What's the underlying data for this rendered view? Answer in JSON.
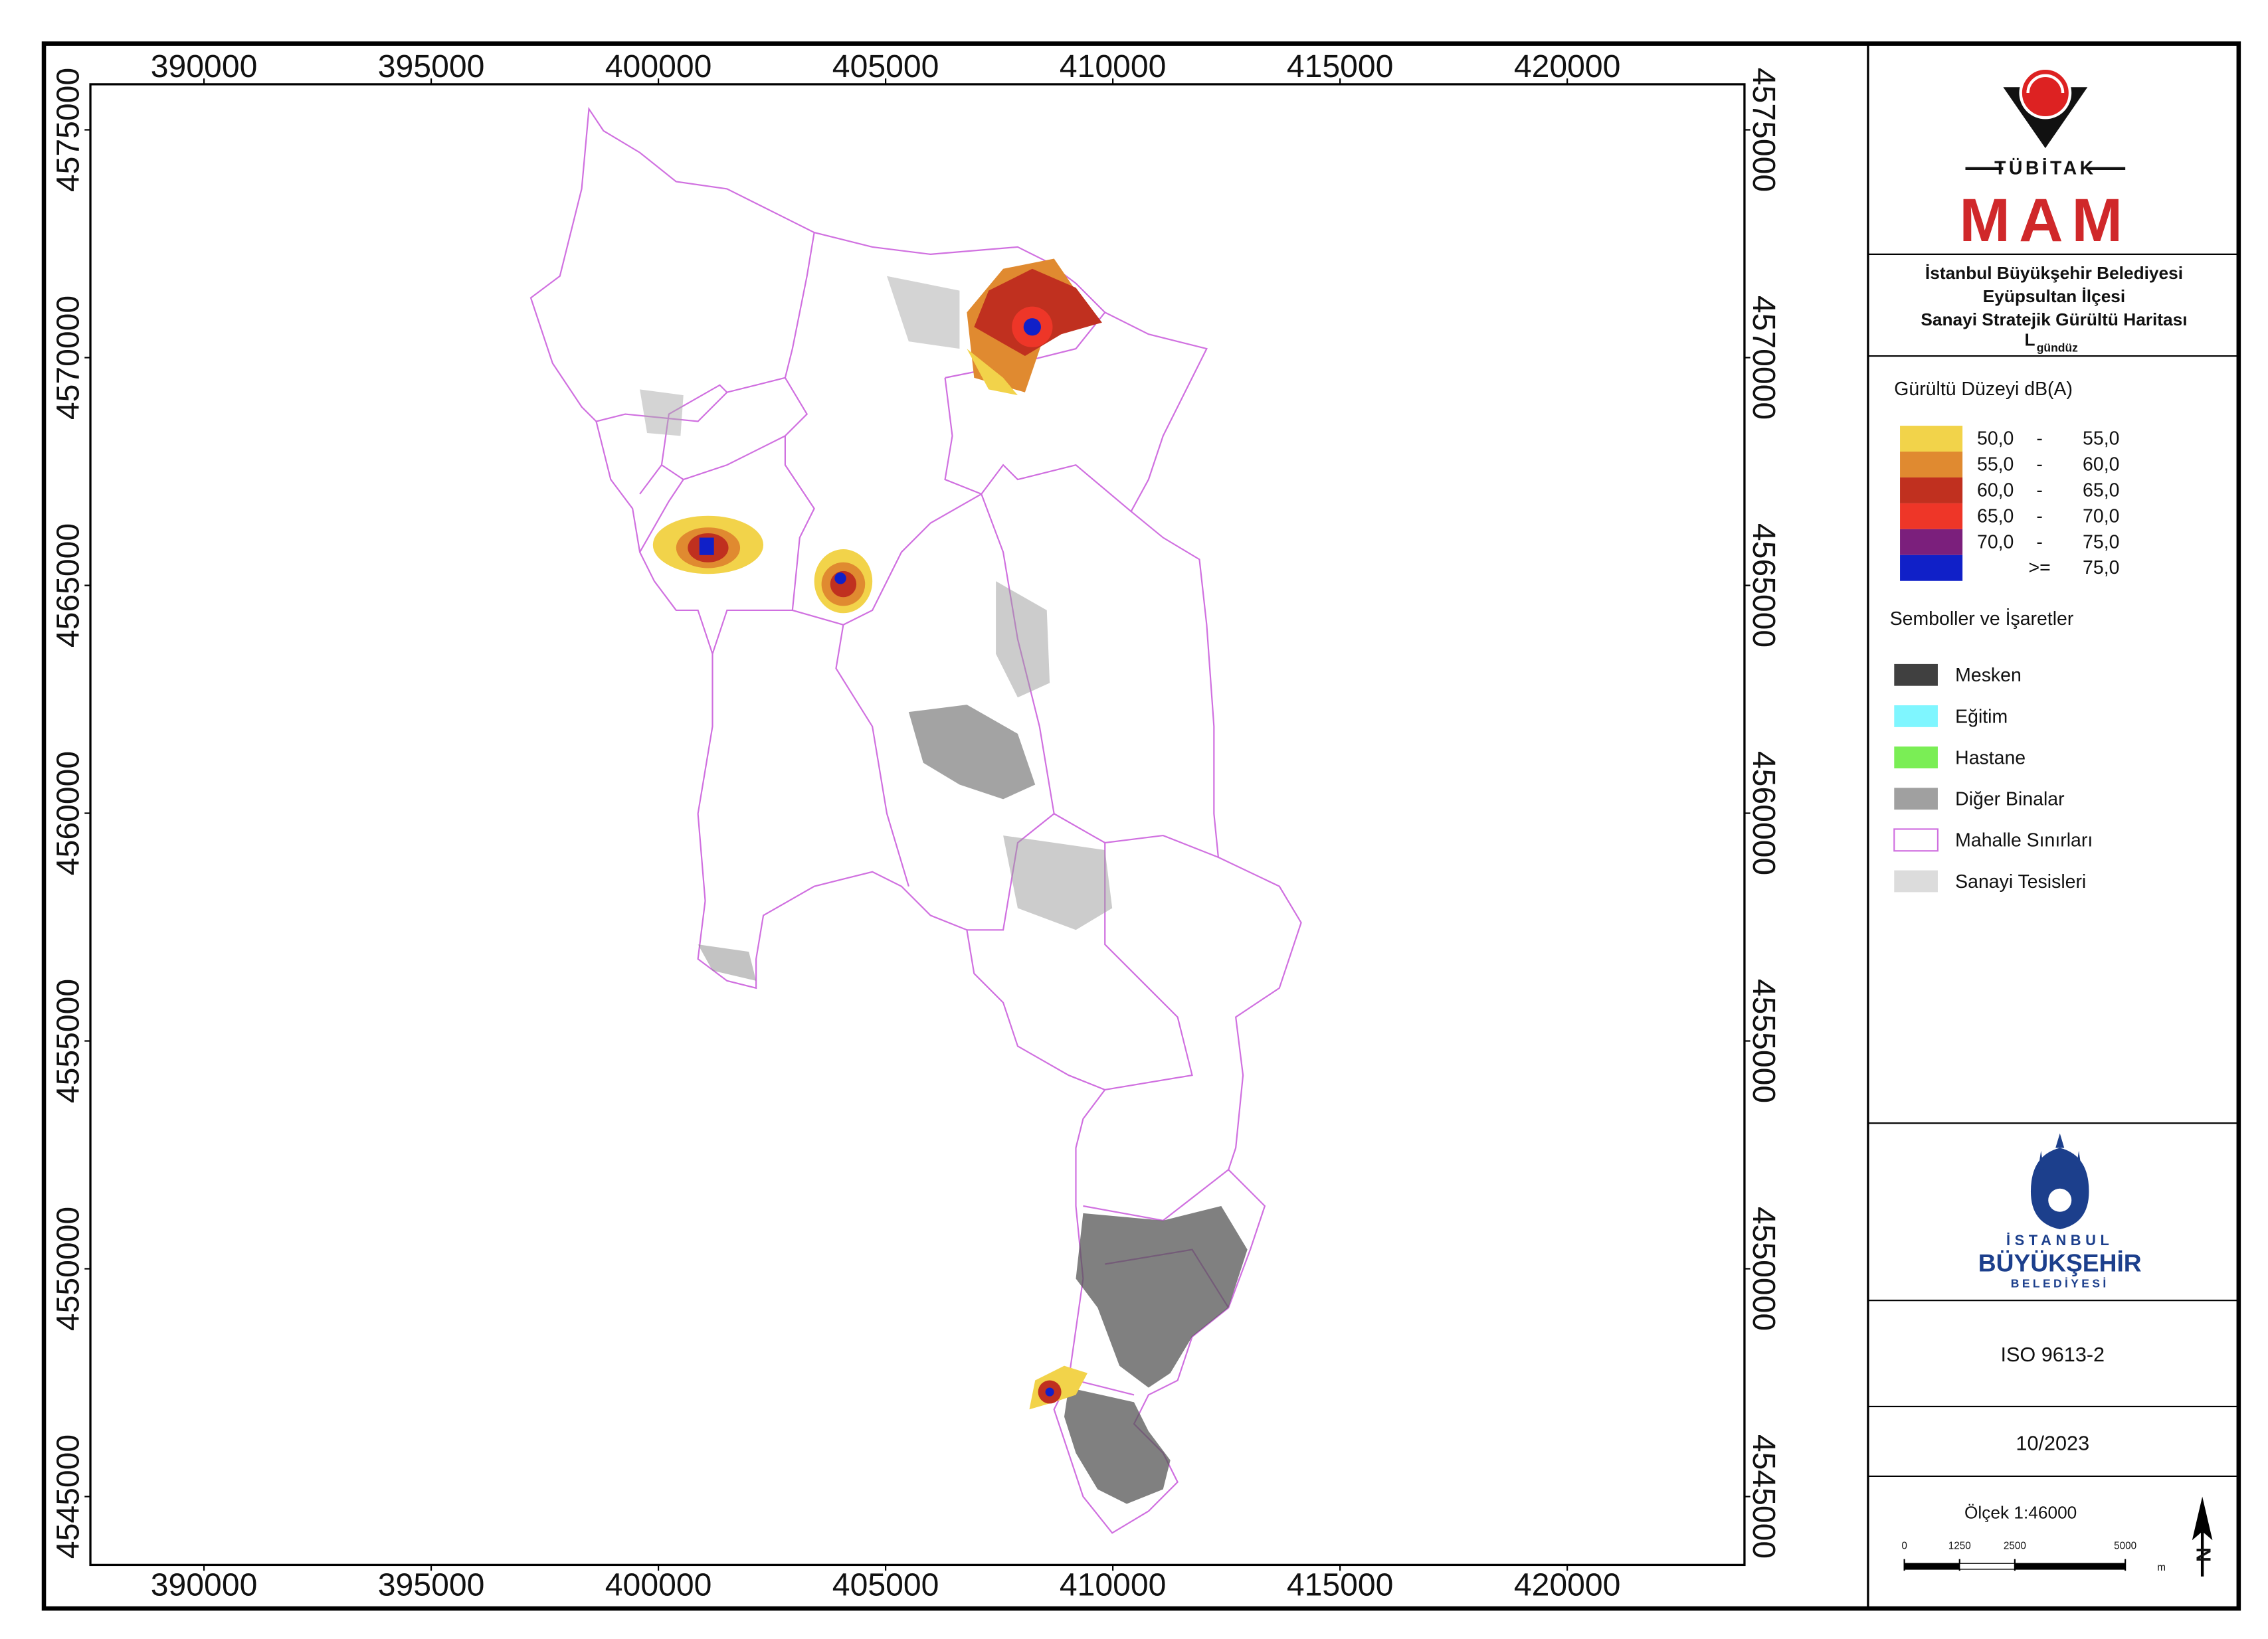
{
  "map": {
    "xlim": [
      387500,
      423900
    ],
    "ylim": [
      4543500,
      4576000
    ],
    "xticks": [
      390000,
      395000,
      400000,
      405000,
      410000,
      415000,
      420000
    ],
    "yticks": [
      4545000,
      4550000,
      4555000,
      4560000,
      4565000,
      4570000,
      4575000
    ]
  },
  "header": {
    "logo_text": "TÜBİTAK",
    "logo_name": "MAM",
    "title_lines": [
      "İstanbul Büyükşehir Belediyesi",
      "Eyüpsultan İlçesi",
      "Sanayi Stratejik Gürültü Haritası"
    ],
    "indicator": "L",
    "indicator_sub": "gündüz"
  },
  "noise_legend": {
    "title": "Gürültü Düzeyi dB(A)",
    "items": [
      {
        "low": "50,0",
        "op": "-",
        "high": "55,0",
        "color": "#f2d34a"
      },
      {
        "low": "55,0",
        "op": "-",
        "high": "60,0",
        "color": "#e08a30"
      },
      {
        "low": "60,0",
        "op": "-",
        "high": "65,0",
        "color": "#c0301f"
      },
      {
        "low": "65,0",
        "op": "-",
        "high": "70,0",
        "color": "#ee3628"
      },
      {
        "low": "70,0",
        "op": "-",
        "high": "75,0",
        "color": "#7b1f7c"
      },
      {
        "op": ">=",
        "high": "75,0",
        "color": "#1020c8"
      }
    ]
  },
  "symbol_legend": {
    "title": "Semboller ve İşaretler",
    "items": [
      {
        "name": "Mesken",
        "color": "#404040"
      },
      {
        "name": "Eğitim",
        "color": "#7ff6ff"
      },
      {
        "name": "Hastane",
        "color": "#7aee55"
      },
      {
        "name": "Diğer Binalar",
        "color": "#a0a0a0"
      },
      {
        "name": "Mahalle Sınırları",
        "color": "#ffffff",
        "stroke": "#d070e0"
      },
      {
        "name": "Sanayi Tesisleri",
        "color": "#dcdcdc"
      }
    ]
  },
  "ibb_logo": {
    "line1": "İSTANBUL",
    "line2": "BÜYÜKŞEHİR",
    "line3": "BELEDİYESİ"
  },
  "standard": "ISO 9613-2",
  "date": "10/2023",
  "scale": {
    "label": "Ölçek 1:46000",
    "ticks": [
      0,
      1250,
      2500,
      5000
    ],
    "unit": "m"
  },
  "north": "N"
}
